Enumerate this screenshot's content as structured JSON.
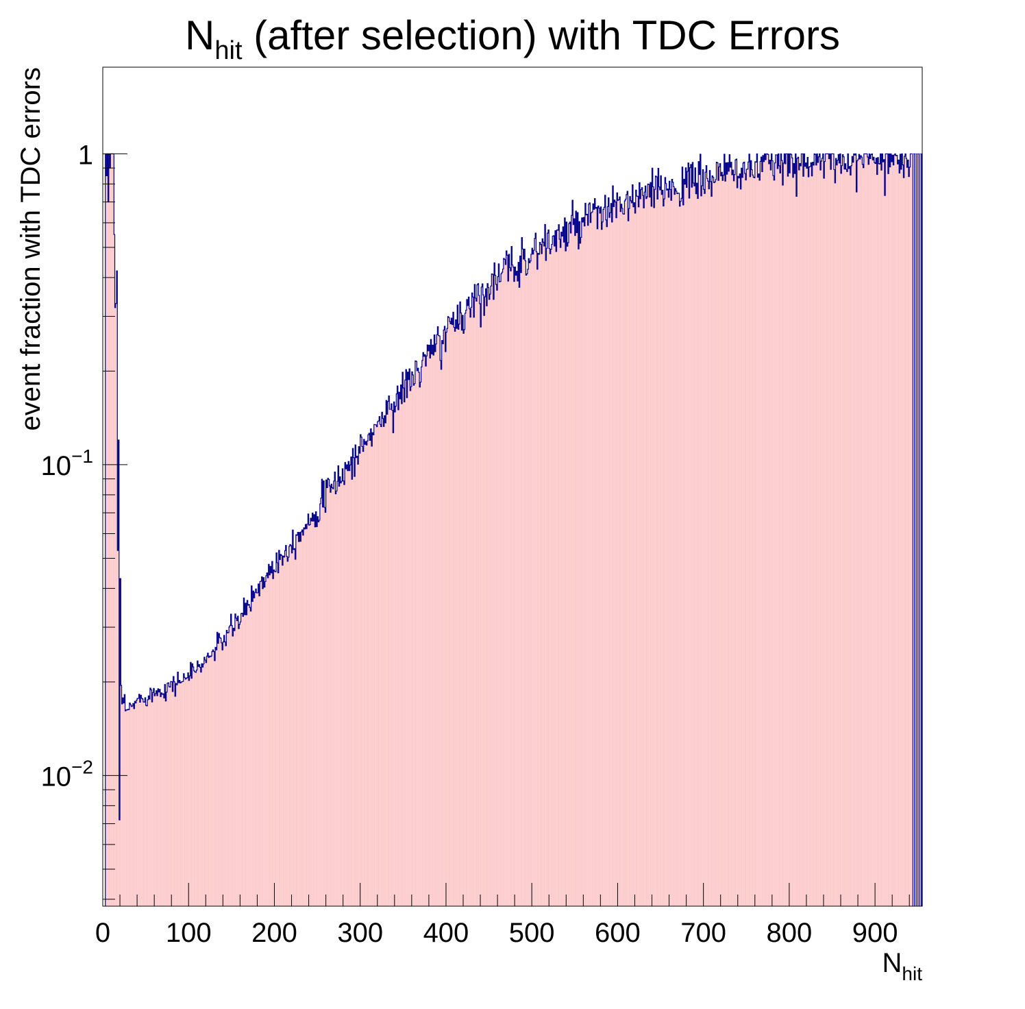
{
  "chart_data": {
    "type": "bar",
    "title_main": "N",
    "title_sub": "hit",
    "title_rest": " (after selection) with TDC Errors",
    "xlabel_main": "N",
    "xlabel_sub": "hit",
    "ylabel": "event fraction with TDC errors",
    "x_scale": "linear",
    "y_scale": "log",
    "xlim": [
      0,
      955
    ],
    "ylim": [
      0.0038,
      1.9
    ],
    "grid": false,
    "legend": "none",
    "fill_color": "#fccbcc",
    "line_color": "#00008b",
    "x_ticks": [
      {
        "value": 0,
        "label": "0"
      },
      {
        "value": 100,
        "label": "100"
      },
      {
        "value": 200,
        "label": "200"
      },
      {
        "value": 300,
        "label": "300"
      },
      {
        "value": 400,
        "label": "400"
      },
      {
        "value": 500,
        "label": "500"
      },
      {
        "value": 600,
        "label": "600"
      },
      {
        "value": 700,
        "label": "700"
      },
      {
        "value": 800,
        "label": "800"
      },
      {
        "value": 900,
        "label": "900"
      }
    ],
    "y_ticks": [
      {
        "value": 1,
        "base": "1",
        "exp": ""
      },
      {
        "value": 0.1,
        "base": "10",
        "exp": "−1"
      },
      {
        "value": 0.01,
        "base": "10",
        "exp": "−2"
      }
    ],
    "bin_width": 1,
    "bins_low": [
      {
        "x": 3,
        "y": 1.0
      },
      {
        "x": 4,
        "y": 0.85
      },
      {
        "x": 5,
        "y": 1.0
      },
      {
        "x": 6,
        "y": 0.7
      },
      {
        "x": 7,
        "y": 1.0
      },
      {
        "x": 8,
        "y": 0.9
      },
      {
        "x": 9,
        "y": 1.0
      },
      {
        "x": 10,
        "y": 1.0
      },
      {
        "x": 11,
        "y": 1.0
      },
      {
        "x": 12,
        "y": 1.0
      },
      {
        "x": 13,
        "y": 0.55
      },
      {
        "x": 14,
        "y": 0.32
      },
      {
        "x": 15,
        "y": 0.33
      },
      {
        "x": 16,
        "y": 0.42
      },
      {
        "x": 17,
        "y": 0.053
      },
      {
        "x": 18,
        "y": 0.12
      },
      {
        "x": 19,
        "y": 0.0072
      },
      {
        "x": 20,
        "y": 0.043
      },
      {
        "x": 21,
        "y": 0.0195
      },
      {
        "x": 22,
        "y": 0.017
      }
    ],
    "anchors": [
      [
        23,
        0.0172
      ],
      [
        28,
        0.016
      ],
      [
        40,
        0.0175
      ],
      [
        60,
        0.0185
      ],
      [
        80,
        0.0195
      ],
      [
        100,
        0.021
      ],
      [
        120,
        0.0235
      ],
      [
        140,
        0.0275
      ],
      [
        160,
        0.032
      ],
      [
        180,
        0.04
      ],
      [
        200,
        0.048
      ],
      [
        220,
        0.056
      ],
      [
        240,
        0.066
      ],
      [
        260,
        0.08
      ],
      [
        280,
        0.094
      ],
      [
        300,
        0.112
      ],
      [
        320,
        0.135
      ],
      [
        340,
        0.16
      ],
      [
        360,
        0.19
      ],
      [
        380,
        0.225
      ],
      [
        400,
        0.265
      ],
      [
        420,
        0.31
      ],
      [
        440,
        0.355
      ],
      [
        460,
        0.4
      ],
      [
        480,
        0.44
      ],
      [
        500,
        0.48
      ],
      [
        520,
        0.52
      ],
      [
        540,
        0.555
      ],
      [
        560,
        0.6
      ],
      [
        580,
        0.64
      ],
      [
        600,
        0.675
      ],
      [
        620,
        0.71
      ],
      [
        640,
        0.745
      ],
      [
        660,
        0.78
      ],
      [
        680,
        0.8
      ],
      [
        700,
        0.83
      ],
      [
        720,
        0.855
      ],
      [
        740,
        0.885
      ],
      [
        760,
        0.9
      ],
      [
        780,
        0.93
      ],
      [
        800,
        0.95
      ],
      [
        820,
        0.96
      ],
      [
        840,
        0.96
      ],
      [
        860,
        0.965
      ],
      [
        880,
        0.965
      ],
      [
        900,
        0.97
      ],
      [
        920,
        0.97
      ],
      [
        940,
        0.97
      ]
    ],
    "spikes_high": [
      942,
      944,
      946,
      948,
      950,
      952,
      954
    ]
  }
}
